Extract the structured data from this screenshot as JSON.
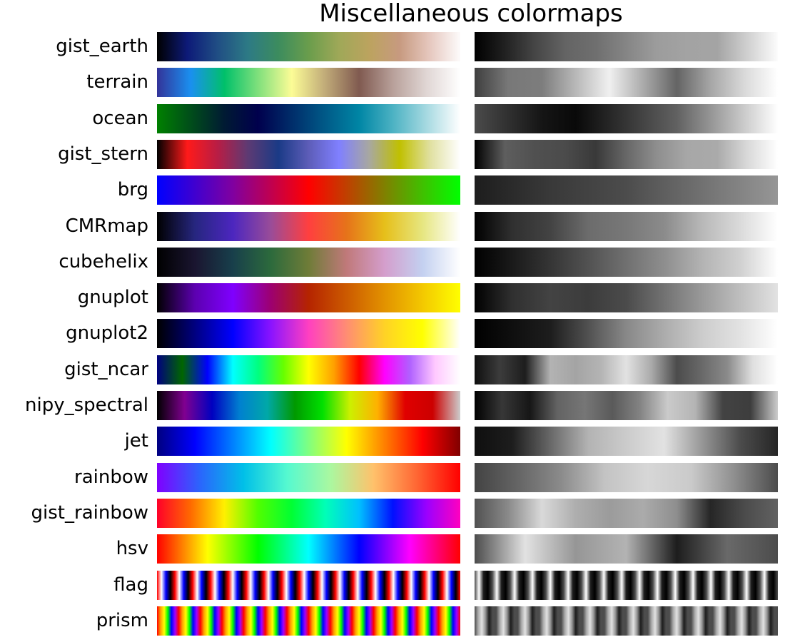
{
  "chart_data": {
    "type": "colormap-table",
    "title": "Miscellaneous colormaps",
    "columns": [
      "color",
      "grayscale"
    ],
    "colormaps": [
      {
        "name": "gist_earth",
        "stops": [
          "#000000",
          "#0d1a78",
          "#204e84",
          "#2d7a85",
          "#3c8c5e",
          "#6a9d4c",
          "#9fa858",
          "#bca35f",
          "#c79a80",
          "#e6c8bf",
          "#fdfbfb"
        ],
        "repeat": 1
      },
      {
        "name": "terrain",
        "stops": [
          "#333399",
          "#1a90f0",
          "#00c06a",
          "#80e07c",
          "#fcfc96",
          "#c0aa78",
          "#805a50",
          "#b8a09a",
          "#e0d6d4",
          "#ffffff"
        ],
        "repeat": 1
      },
      {
        "name": "ocean",
        "stops": [
          "#008000",
          "#004d1a",
          "#001a33",
          "#00004d",
          "#002d6a",
          "#005a88",
          "#0086a5",
          "#4cb2c3",
          "#a6d9e1",
          "#ffffff"
        ],
        "repeat": 1
      },
      {
        "name": "gist_stern",
        "stops": [
          "#000000",
          "#ff1a1a",
          "#b81d45",
          "#5d3a73",
          "#1a3a86",
          "#5d5db8",
          "#8080ff",
          "#a8a8a0",
          "#c0c000",
          "#e0e0a0",
          "#ffffff"
        ],
        "repeat": 1
      },
      {
        "name": "brg",
        "stops": [
          "#0000ff",
          "#8000a0",
          "#ff0000",
          "#808000",
          "#00ff00"
        ],
        "repeat": 1
      },
      {
        "name": "CMRmap",
        "stops": [
          "#000000",
          "#26267f",
          "#4c26bf",
          "#994c99",
          "#ff3f3f",
          "#e6731a",
          "#e6bf1a",
          "#e6e680",
          "#ffffff"
        ],
        "repeat": 1
      },
      {
        "name": "cubehelix",
        "stops": [
          "#000000",
          "#1a1530",
          "#183f4b",
          "#2c6a3c",
          "#6f7c38",
          "#c0797a",
          "#d49ecc",
          "#c3d0f0",
          "#ffffff"
        ],
        "repeat": 1
      },
      {
        "name": "gnuplot",
        "stops": [
          "#000000",
          "#5c00b0",
          "#7f00ff",
          "#9d0070",
          "#b52400",
          "#cc5a00",
          "#e29200",
          "#f3c800",
          "#ffff00"
        ],
        "repeat": 1
      },
      {
        "name": "gnuplot2",
        "stops": [
          "#000000",
          "#000080",
          "#0000ff",
          "#8a13ff",
          "#ff40c0",
          "#ff8d73",
          "#ffd226",
          "#ffff00",
          "#ffffff"
        ],
        "repeat": 1
      },
      {
        "name": "gist_ncar",
        "stops": [
          "#000080",
          "#006600",
          "#0000ff",
          "#00ffff",
          "#00ff80",
          "#66ff00",
          "#ffff00",
          "#ffa000",
          "#ff0000",
          "#ff00ff",
          "#b060ff",
          "#ffc8ff",
          "#ffffff"
        ],
        "repeat": 1
      },
      {
        "name": "nipy_spectral",
        "stops": [
          "#000000",
          "#800090",
          "#0000c0",
          "#0080d0",
          "#00a8a8",
          "#009900",
          "#00e000",
          "#ccf000",
          "#ffb000",
          "#e00000",
          "#cc0000",
          "#cccccc"
        ],
        "repeat": 1
      },
      {
        "name": "jet",
        "stops": [
          "#000080",
          "#0000ff",
          "#0080ff",
          "#00ffff",
          "#80ff80",
          "#ffff00",
          "#ff8000",
          "#ff0000",
          "#800000"
        ],
        "repeat": 1
      },
      {
        "name": "rainbow",
        "stops": [
          "#8000ff",
          "#2a66fc",
          "#00c0e8",
          "#55f9d0",
          "#aaf8a0",
          "#ffc16b",
          "#ff6633",
          "#ff0000"
        ],
        "repeat": 1
      },
      {
        "name": "gist_rainbow",
        "stops": [
          "#ff0029",
          "#ff6a00",
          "#fff000",
          "#50ff00",
          "#00ff33",
          "#00ffb8",
          "#00c0ff",
          "#0010ff",
          "#9b00ff",
          "#ff00bf"
        ],
        "repeat": 1
      },
      {
        "name": "hsv",
        "stops": [
          "#ff0000",
          "#ffff00",
          "#00ff00",
          "#00ffff",
          "#0000ff",
          "#ff00ff",
          "#ff0000"
        ],
        "repeat": 1
      },
      {
        "name": "flag",
        "stops": [
          "#ff0000",
          "#ffffff",
          "#0000ff",
          "#000000",
          "#ff0000"
        ],
        "repeat": 17
      },
      {
        "name": "prism",
        "stops": [
          "#ff0000",
          "#ffa000",
          "#ffff00",
          "#00ff00",
          "#0000ff",
          "#a000ff",
          "#ff0000"
        ],
        "repeat": 14
      }
    ]
  }
}
